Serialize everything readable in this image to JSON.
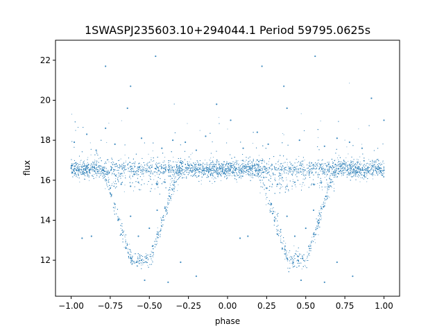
{
  "chart_data": {
    "type": "scatter",
    "title": "1SWASPJ235603.10+294044.1 Period 59795.0625s",
    "xlabel": "phase",
    "ylabel": "flux",
    "xlim": [
      -1.1,
      1.1
    ],
    "ylim": [
      10.2,
      23.0
    ],
    "xticks": [
      {
        "value": -1.0,
        "label": "−1.00"
      },
      {
        "value": -0.75,
        "label": "−0.75"
      },
      {
        "value": -0.5,
        "label": "−0.50"
      },
      {
        "value": -0.25,
        "label": "−0.25"
      },
      {
        "value": 0.0,
        "label": "0.00"
      },
      {
        "value": 0.25,
        "label": "0.25"
      },
      {
        "value": 0.5,
        "label": "0.50"
      },
      {
        "value": 0.75,
        "label": "0.75"
      },
      {
        "value": 1.0,
        "label": "1.00"
      }
    ],
    "yticks": [
      {
        "value": 12,
        "label": "12"
      },
      {
        "value": 14,
        "label": "14"
      },
      {
        "value": 16,
        "label": "16"
      },
      {
        "value": 18,
        "label": "18"
      },
      {
        "value": 20,
        "label": "20"
      },
      {
        "value": 22,
        "label": "22"
      }
    ],
    "grid": false,
    "legend": "none",
    "point_color": "#1f77b4",
    "series": [
      {
        "values": [
          {
            "x": -1.0,
            "y": 16.6
          },
          {
            "x": -0.95,
            "y": 16.5
          },
          {
            "x": -0.9,
            "y": 16.7
          },
          {
            "x": -0.85,
            "y": 16.6
          },
          {
            "x": -0.8,
            "y": 16.5
          },
          {
            "x": -0.77,
            "y": 16.4
          },
          {
            "x": -0.75,
            "y": 15.6
          },
          {
            "x": -0.72,
            "y": 14.8
          },
          {
            "x": -0.7,
            "y": 14.0
          },
          {
            "x": -0.68,
            "y": 13.3
          },
          {
            "x": -0.65,
            "y": 12.6
          },
          {
            "x": -0.62,
            "y": 12.1
          },
          {
            "x": -0.58,
            "y": 11.9
          },
          {
            "x": -0.55,
            "y": 12.0
          },
          {
            "x": -0.52,
            "y": 12.1
          },
          {
            "x": -0.48,
            "y": 12.7
          },
          {
            "x": -0.45,
            "y": 13.3
          },
          {
            "x": -0.42,
            "y": 14.0
          },
          {
            "x": -0.4,
            "y": 14.6
          },
          {
            "x": -0.37,
            "y": 15.2
          },
          {
            "x": -0.34,
            "y": 15.9
          },
          {
            "x": -0.31,
            "y": 16.4
          },
          {
            "x": -0.25,
            "y": 16.6
          },
          {
            "x": -0.15,
            "y": 16.5
          },
          {
            "x": -0.05,
            "y": 16.6
          },
          {
            "x": 0.05,
            "y": 16.5
          },
          {
            "x": 0.15,
            "y": 16.6
          },
          {
            "x": 0.21,
            "y": 16.5
          },
          {
            "x": 0.23,
            "y": 16.4
          },
          {
            "x": 0.25,
            "y": 15.6
          },
          {
            "x": 0.28,
            "y": 14.8
          },
          {
            "x": 0.3,
            "y": 14.0
          },
          {
            "x": 0.32,
            "y": 13.3
          },
          {
            "x": 0.35,
            "y": 12.6
          },
          {
            "x": 0.38,
            "y": 12.1
          },
          {
            "x": 0.42,
            "y": 11.9
          },
          {
            "x": 0.45,
            "y": 12.0
          },
          {
            "x": 0.48,
            "y": 12.1
          },
          {
            "x": 0.52,
            "y": 12.7
          },
          {
            "x": 0.55,
            "y": 13.3
          },
          {
            "x": 0.58,
            "y": 14.0
          },
          {
            "x": 0.6,
            "y": 14.6
          },
          {
            "x": 0.63,
            "y": 15.2
          },
          {
            "x": 0.66,
            "y": 15.9
          },
          {
            "x": 0.69,
            "y": 16.4
          },
          {
            "x": 0.75,
            "y": 16.6
          },
          {
            "x": 0.85,
            "y": 16.5
          },
          {
            "x": 0.95,
            "y": 16.6
          },
          {
            "x": 1.0,
            "y": 16.5
          },
          {
            "x": -0.68,
            "y": 15.8
          },
          {
            "x": -0.62,
            "y": 15.7
          },
          {
            "x": -0.57,
            "y": 15.9
          },
          {
            "x": -0.45,
            "y": 15.8
          },
          {
            "x": -0.4,
            "y": 15.9
          },
          {
            "x": 0.32,
            "y": 15.8
          },
          {
            "x": 0.38,
            "y": 15.7
          },
          {
            "x": 0.43,
            "y": 15.9
          },
          {
            "x": 0.55,
            "y": 15.8
          },
          {
            "x": 0.6,
            "y": 15.9
          },
          {
            "x": -0.62,
            "y": 14.2
          },
          {
            "x": -0.57,
            "y": 13.2
          },
          {
            "x": -0.5,
            "y": 13.6
          },
          {
            "x": -0.45,
            "y": 14.5
          },
          {
            "x": 0.38,
            "y": 14.2
          },
          {
            "x": 0.43,
            "y": 13.2
          },
          {
            "x": 0.5,
            "y": 13.6
          },
          {
            "x": 0.55,
            "y": 14.5
          },
          {
            "x": -0.98,
            "y": 17.9
          },
          {
            "x": -0.9,
            "y": 18.3
          },
          {
            "x": -0.84,
            "y": 17.5
          },
          {
            "x": -0.78,
            "y": 18.6
          },
          {
            "x": -0.72,
            "y": 17.8
          },
          {
            "x": -0.64,
            "y": 19.6
          },
          {
            "x": -0.62,
            "y": 20.7
          },
          {
            "x": -0.55,
            "y": 18.1
          },
          {
            "x": -0.46,
            "y": 22.2
          },
          {
            "x": -0.42,
            "y": 17.6
          },
          {
            "x": -0.35,
            "y": 18.0
          },
          {
            "x": -0.27,
            "y": 17.9
          },
          {
            "x": -0.2,
            "y": 17.5
          },
          {
            "x": -0.14,
            "y": 18.2
          },
          {
            "x": -0.07,
            "y": 19.8
          },
          {
            "x": 0.02,
            "y": 19.0
          },
          {
            "x": 0.1,
            "y": 17.6
          },
          {
            "x": 0.19,
            "y": 18.4
          },
          {
            "x": 0.26,
            "y": 17.8
          },
          {
            "x": 0.36,
            "y": 20.7
          },
          {
            "x": 0.38,
            "y": 19.6
          },
          {
            "x": 0.46,
            "y": 18.0
          },
          {
            "x": 0.56,
            "y": 22.2
          },
          {
            "x": 0.62,
            "y": 17.7
          },
          {
            "x": 0.7,
            "y": 18.1
          },
          {
            "x": 0.78,
            "y": 17.9
          },
          {
            "x": 0.86,
            "y": 17.6
          },
          {
            "x": 0.92,
            "y": 20.1
          },
          {
            "x": 1.0,
            "y": 19.0
          },
          {
            "x": -0.78,
            "y": 21.7
          },
          {
            "x": 0.22,
            "y": 21.7
          },
          {
            "x": -0.93,
            "y": 13.1
          },
          {
            "x": -0.87,
            "y": 13.2
          },
          {
            "x": -0.3,
            "y": 11.9
          },
          {
            "x": -0.38,
            "y": 10.9
          },
          {
            "x": -0.53,
            "y": 11.0
          },
          {
            "x": 0.08,
            "y": 13.1
          },
          {
            "x": 0.13,
            "y": 13.2
          },
          {
            "x": 0.7,
            "y": 11.9
          },
          {
            "x": 0.62,
            "y": 10.9
          },
          {
            "x": 0.47,
            "y": 11.0
          },
          {
            "x": 0.8,
            "y": 11.2
          },
          {
            "x": -0.2,
            "y": 11.2
          }
        ]
      }
    ]
  }
}
